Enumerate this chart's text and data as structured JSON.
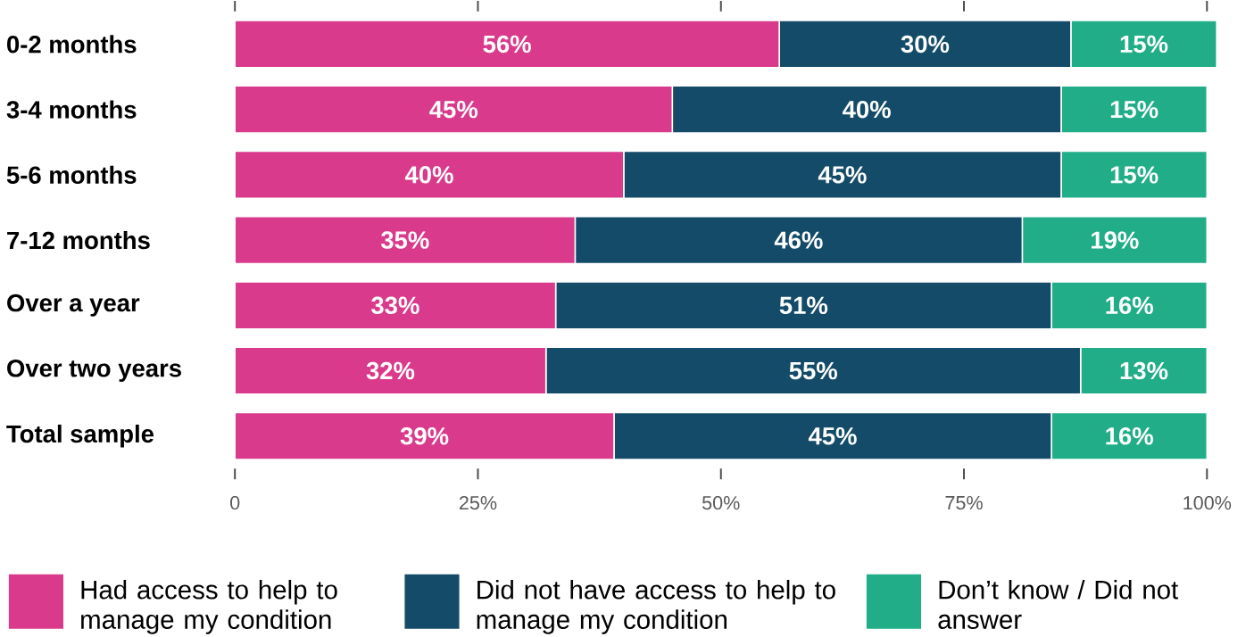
{
  "chart_data": {
    "type": "bar",
    "orientation": "horizontal",
    "stacked": true,
    "categories": [
      "0-2 months",
      "3-4 months",
      "5-6 months",
      "7-12 months",
      "Over a year",
      "Over two years",
      "Total sample"
    ],
    "series": [
      {
        "name": "Had access to help to manage my condition",
        "color": "#d93a8c",
        "values": [
          56,
          45,
          40,
          35,
          33,
          32,
          39
        ],
        "value_labels": [
          "56%",
          "45%",
          "40%",
          "35%",
          "33%",
          "32%",
          "39%"
        ]
      },
      {
        "name": "Did not have access to help to manage my condition",
        "color": "#134b68",
        "values": [
          30,
          40,
          45,
          46,
          51,
          55,
          45
        ],
        "value_labels": [
          "30%",
          "40%",
          "45%",
          "46%",
          "51%",
          "55%",
          "45%"
        ]
      },
      {
        "name": "Don’t know / Did not answer",
        "color": "#21ad88",
        "values": [
          15,
          15,
          15,
          19,
          16,
          13,
          16
        ],
        "value_labels": [
          "15%",
          "15%",
          "15%",
          "19%",
          "16%",
          "13%",
          "16%"
        ]
      }
    ],
    "xlim": [
      0,
      101
    ],
    "xticks": [
      0,
      {
        "value": 25,
        "label": "25%"
      },
      {
        "value": 50,
        "label": "50%"
      },
      {
        "value": 75,
        "label": "75%"
      },
      {
        "value": 100,
        "label": "100%"
      }
    ],
    "grid": false,
    "legend": "bottom"
  }
}
